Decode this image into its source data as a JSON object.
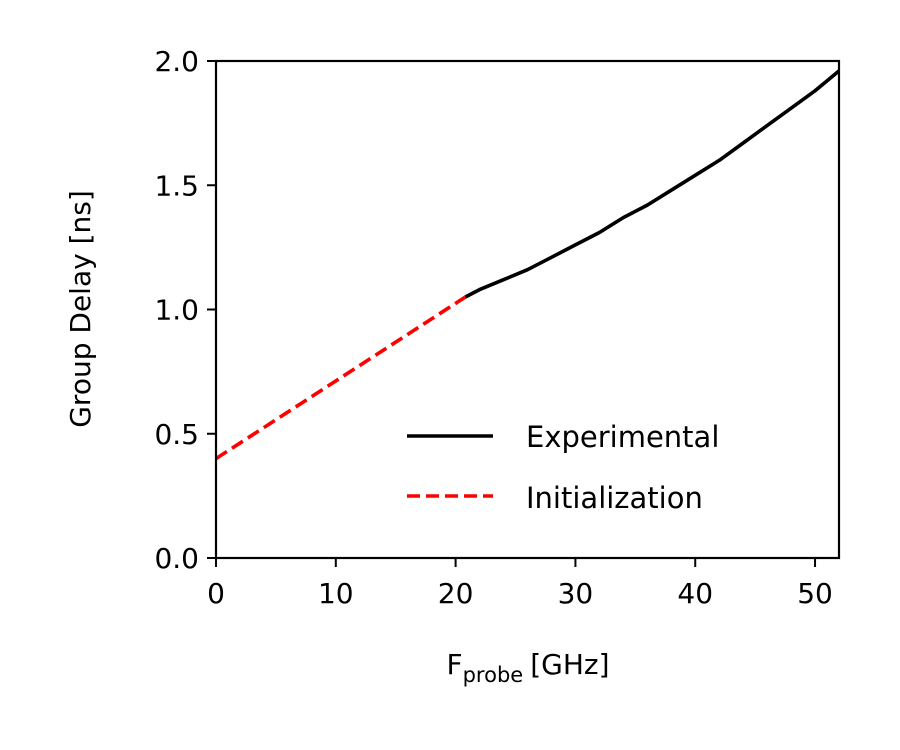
{
  "chart_data": {
    "type": "line",
    "title": "",
    "xlabel": {
      "main": "F",
      "sub": "probe",
      "unit": "[GHz]"
    },
    "ylabel": "Group Delay [ns]",
    "xlim": [
      0,
      52
    ],
    "ylim": [
      0,
      2.0
    ],
    "xticks": [
      "0",
      "10",
      "20",
      "30",
      "40",
      "50"
    ],
    "yticks": [
      "0.0",
      "0.5",
      "1.0",
      "1.5",
      "2.0"
    ],
    "grid": false,
    "legend_position": "lower-right",
    "series": [
      {
        "name": "Experimental",
        "color": "#000000",
        "style": "solid",
        "x": [
          20.8,
          22,
          24,
          26,
          28,
          30,
          32,
          34,
          36,
          38,
          40,
          42,
          44,
          46,
          48,
          50,
          51,
          52
        ],
        "y": [
          1.05,
          1.08,
          1.12,
          1.16,
          1.21,
          1.26,
          1.31,
          1.37,
          1.42,
          1.48,
          1.54,
          1.6,
          1.67,
          1.74,
          1.81,
          1.88,
          1.92,
          1.96
        ]
      },
      {
        "name": "Initialization",
        "color": "#ff0000",
        "style": "dashed",
        "x": [
          0,
          20.8
        ],
        "y": [
          0.4,
          1.05
        ]
      }
    ]
  }
}
